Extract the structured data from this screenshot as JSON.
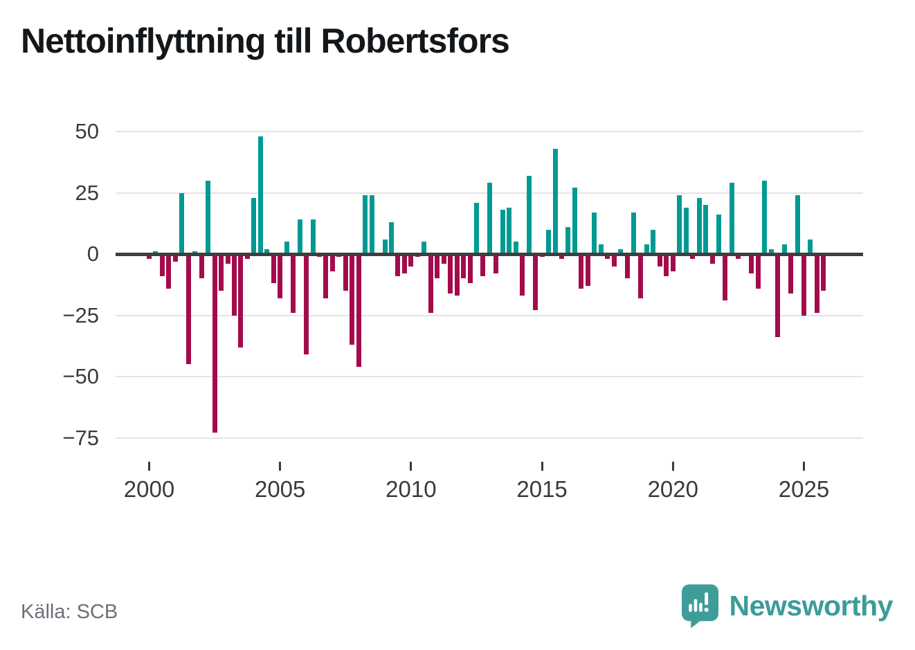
{
  "title": "Nettoinflyttning till Robertsfors",
  "source": "Källa: SCB",
  "brand": {
    "name": "Newsworthy",
    "color": "#3b9c98"
  },
  "chart_data": {
    "type": "bar",
    "title": "Nettoinflyttning till Robertsfors",
    "frequency": "quarterly",
    "x_start": "2000-Q1",
    "x_end": "2025-Q4",
    "ylim": [
      -75,
      50
    ],
    "grid": true,
    "colors": {
      "positive": "#009a93",
      "negative": "#a30b4c"
    },
    "yticks": [
      {
        "v": 50,
        "label": "50"
      },
      {
        "v": 25,
        "label": "25"
      },
      {
        "v": 0,
        "label": "0"
      },
      {
        "v": -25,
        "label": "−25"
      },
      {
        "v": -50,
        "label": "−50"
      },
      {
        "v": -75,
        "label": "−75"
      }
    ],
    "xticks": [
      {
        "year": 2000,
        "label": "2000"
      },
      {
        "year": 2005,
        "label": "2005"
      },
      {
        "year": 2010,
        "label": "2010"
      },
      {
        "year": 2015,
        "label": "2015"
      },
      {
        "year": 2020,
        "label": "2020"
      },
      {
        "year": 2025,
        "label": "2025"
      }
    ],
    "values_by_year": {
      "2000": [
        -2,
        1,
        -9,
        -14
      ],
      "2001": [
        -3,
        25,
        -45,
        1
      ],
      "2002": [
        -10,
        30,
        -73,
        -15
      ],
      "2003": [
        -4,
        -25,
        -38,
        -2
      ],
      "2004": [
        23,
        48,
        2,
        -12
      ],
      "2005": [
        -18,
        5,
        -24,
        14
      ],
      "2006": [
        -41,
        14,
        -1,
        -18
      ],
      "2007": [
        -7,
        -1,
        -15,
        -37
      ],
      "2008": [
        -46,
        24,
        24,
        0
      ],
      "2009": [
        6,
        13,
        -9,
        -8
      ],
      "2010": [
        -5,
        -1,
        5,
        -24
      ],
      "2011": [
        -10,
        -4,
        -16,
        -17
      ],
      "2012": [
        -10,
        -12,
        21,
        -9
      ],
      "2013": [
        29,
        -8,
        18,
        19
      ],
      "2014": [
        5,
        -17,
        32,
        -23
      ],
      "2015": [
        -1,
        10,
        43,
        -2
      ],
      "2016": [
        11,
        27,
        -14,
        -13
      ],
      "2017": [
        17,
        4,
        -2,
        -5
      ],
      "2018": [
        2,
        -10,
        17,
        -18
      ],
      "2019": [
        4,
        10,
        -5,
        -9
      ],
      "2020": [
        -7,
        24,
        19,
        -2
      ],
      "2021": [
        23,
        20,
        -4,
        16
      ],
      "2022": [
        -19,
        29,
        -2,
        0
      ],
      "2023": [
        -8,
        -14,
        30,
        2
      ],
      "2024": [
        -34,
        4,
        -16,
        24
      ],
      "2025": [
        -25,
        6,
        -24,
        -15
      ]
    }
  }
}
